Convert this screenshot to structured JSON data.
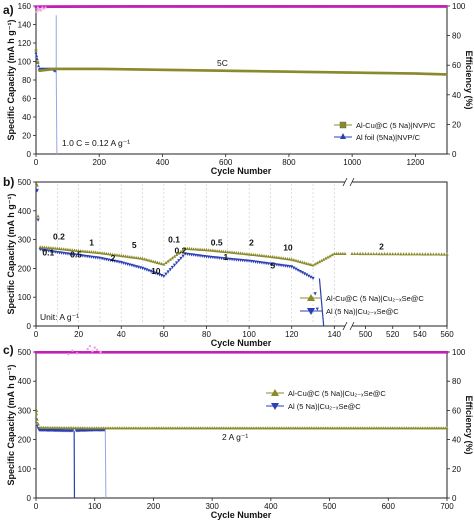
{
  "colors": {
    "olive": "#8a8a2a",
    "blue": "#2b3fb5",
    "magenta": "#c21fb8",
    "pink": "#f0a0e6",
    "lightblue": "#9aa4e6"
  },
  "chart_data": [
    {
      "panel": "a",
      "type": "scatter",
      "xlabel": "Cycle Number",
      "ylabel": "Specific Capacity (mA h g⁻¹)",
      "y2label": "Efficiency (%)",
      "xlim": [
        0,
        1300
      ],
      "ylim": [
        0,
        160
      ],
      "y2lim": [
        0,
        100
      ],
      "xticks": [
        "0",
        "200",
        "400",
        "600",
        "800",
        "1000",
        "1200"
      ],
      "yticks": [
        "0",
        "20",
        "40",
        "60",
        "80",
        "100",
        "120",
        "140",
        "160"
      ],
      "y2ticks": [
        "0",
        "20",
        "40",
        "60",
        "80",
        "100"
      ],
      "annotations": [
        "5C",
        "1.0 C = 0.12 A g⁻¹"
      ],
      "legend_position": "bottom-right",
      "series": [
        {
          "name": "Al-Cu@C (5 Na)|NVP/C",
          "marker": "square",
          "color": "olive",
          "x": [
            0,
            10,
            60,
            200,
            400,
            600,
            800,
            1000,
            1200,
            1300
          ],
          "y": [
            112,
            90,
            92,
            92,
            91,
            90,
            89,
            88,
            87,
            86
          ]
        },
        {
          "name": "Al foil (5Na)|NVP/C",
          "marker": "triangle",
          "color": "blue",
          "x": [
            0,
            10,
            55,
            62,
            66
          ],
          "y": [
            110,
            92,
            92,
            90,
            0
          ]
        },
        {
          "name": "",
          "role": "efficiency",
          "color": "magenta",
          "x": [
            0,
            60,
            300,
            600,
            900,
            1300
          ],
          "y": [
            99.5,
            99.6,
            99.7,
            99.7,
            99.7,
            99.7
          ]
        }
      ]
    },
    {
      "panel": "b",
      "type": "scatter",
      "xlabel": "Cycle Number",
      "ylabel": "Specific Capacity (mA h g⁻¹)",
      "xlim": [
        0,
        560
      ],
      "axis_break": [
        145,
        490
      ],
      "ylim": [
        0,
        500
      ],
      "xticks": [
        "0",
        "20",
        "40",
        "60",
        "80",
        "100",
        "120",
        "140",
        "500",
        "520",
        "540",
        "560"
      ],
      "yticks": [
        "0",
        "100",
        "200",
        "300",
        "400",
        "500"
      ],
      "annotations": [
        "0.2",
        "0.1",
        "0.5",
        "1",
        "2",
        "5",
        "10",
        "0.1",
        "0.2",
        "0.5",
        "1",
        "2",
        "5",
        "10",
        "10",
        "2",
        "Unit:  A g⁻¹"
      ],
      "legend_position": "bottom-right",
      "series": [
        {
          "name": "Al-Cu@C (5 Na)|Cu₂₋ₓSe@C",
          "marker": "triangle",
          "color": "olive",
          "x": [
            0,
            2,
            10,
            20,
            30,
            40,
            50,
            60,
            70,
            80,
            90,
            100,
            110,
            120,
            130,
            140,
            145,
            490,
            560
          ],
          "y": [
            490,
            275,
            270,
            262,
            255,
            245,
            235,
            215,
            270,
            265,
            258,
            250,
            242,
            232,
            212,
            252,
            252,
            252,
            250
          ]
        },
        {
          "name": "Al (5 Na)|Cu₂₋ₓSe@C",
          "marker": "inverted-triangle",
          "color": "blue",
          "x": [
            0,
            2,
            10,
            20,
            30,
            40,
            50,
            60,
            70,
            80,
            90,
            100,
            110,
            120,
            130,
            133,
            135
          ],
          "y": [
            470,
            265,
            255,
            245,
            235,
            220,
            200,
            172,
            250,
            240,
            232,
            225,
            215,
            205,
            165,
            5,
            0
          ]
        }
      ]
    },
    {
      "panel": "c",
      "type": "scatter",
      "xlabel": "Cycle Number",
      "ylabel": "Specific Capacity (mA h g⁻¹)",
      "y2label": "Efficiency (%)",
      "xlim": [
        0,
        700
      ],
      "ylim": [
        0,
        500
      ],
      "y2lim": [
        0,
        100
      ],
      "xticks": [
        "0",
        "100",
        "200",
        "300",
        "400",
        "500",
        "600",
        "700"
      ],
      "yticks": [
        "0",
        "100",
        "200",
        "300",
        "400",
        "500"
      ],
      "y2ticks": [
        "0",
        "20",
        "40",
        "60",
        "80",
        "100"
      ],
      "annotations": [
        "2 A g⁻¹"
      ],
      "legend_position": "top-right",
      "series": [
        {
          "name": "Al-Cu@C (5 Na)|Cu₂₋ₓSe@C",
          "marker": "triangle",
          "color": "olive",
          "x": [
            0,
            5,
            100,
            300,
            500,
            700
          ],
          "y": [
            300,
            242,
            240,
            240,
            240,
            240
          ]
        },
        {
          "name": "Al (5 Na)|Cu₂₋ₓSe@C",
          "marker": "inverted-triangle",
          "color": "blue",
          "x": [
            0,
            5,
            50,
            64,
            65,
            66,
            67,
            100,
            118,
            119
          ],
          "y": [
            260,
            232,
            230,
            230,
            0,
            230,
            230,
            232,
            232,
            0
          ]
        },
        {
          "name": "",
          "role": "efficiency",
          "color": "magenta",
          "x": [
            0,
            100,
            300,
            500,
            700
          ],
          "y": [
            99.8,
            99.8,
            99.8,
            99.8,
            99.8
          ]
        }
      ]
    }
  ],
  "labels": {
    "a": {
      "letter": "a)",
      "ylabel": "Specific Capacity (mA h g⁻¹)",
      "y2label": "Efficiency (%)",
      "xlabel": "Cycle Number",
      "ann_5c": "5C",
      "ann_rate": "1.0 C = 0.12 A g⁻¹",
      "leg1": "Al-Cu@C (5 Na)|NVP/C",
      "leg2": "Al foil (5Na)|NVP/C"
    },
    "b": {
      "letter": "b)",
      "ylabel": "Specific Capacity (mA h g⁻¹)",
      "xlabel": "Cycle Number",
      "unit": "Unit:  A g⁻¹",
      "leg1": "Al-Cu@C (5 Na)|Cu₂₋ₓSe@C",
      "leg2": "Al (5 Na)|Cu₂₋ₓSe@C"
    },
    "c": {
      "letter": "c)",
      "ylabel": "Specific Capacity (mA h g⁻¹)",
      "y2label": "Efficiency (%)",
      "xlabel": "Cycle Number",
      "ann": "2 A g⁻¹",
      "leg1": "Al-Cu@C (5 Na)|Cu₂₋ₓSe@C",
      "leg2": "Al (5 Na)|Cu₂₋ₓSe@C"
    }
  }
}
